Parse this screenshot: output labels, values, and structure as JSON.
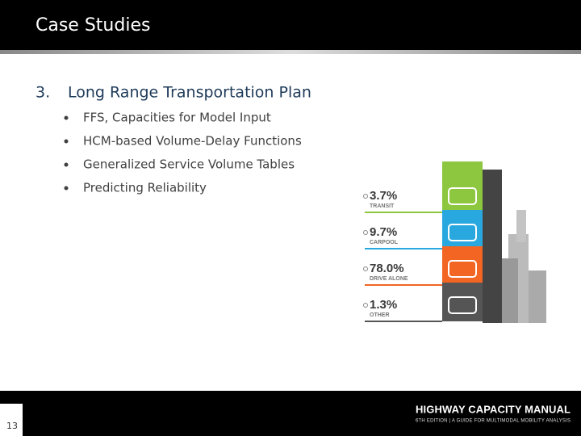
{
  "header": {
    "title": "Case Studies"
  },
  "section": {
    "number": "3.",
    "title": "Long Range Transportation Plan",
    "bullets": [
      "FFS, Capacities for Model Input",
      "HCM-based Volume-Delay Functions",
      "Generalized Service Volume Tables",
      "Predicting Reliability"
    ]
  },
  "infographic": {
    "items": [
      {
        "value": "3.7%",
        "label": "TRANSIT"
      },
      {
        "value": "9.7%",
        "label": "CARPOOL"
      },
      {
        "value": "78.0%",
        "label": "DRIVE ALONE"
      },
      {
        "value": "1.3%",
        "label": "OTHER"
      }
    ]
  },
  "footer": {
    "logo_title": "HIGHWAY CAPACITY MANUAL",
    "logo_subtitle": "6TH EDITION | A GUIDE FOR MULTIMODAL MOBILITY ANALYSIS",
    "page_number": "13"
  }
}
